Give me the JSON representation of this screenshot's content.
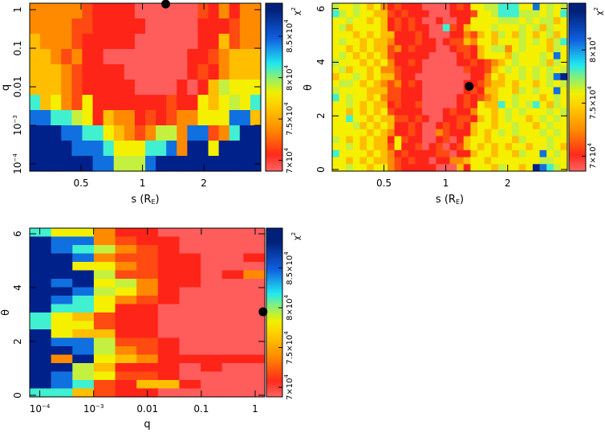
{
  "palette": [
    "#ff5c5c",
    "#ff2418",
    "#ff4a12",
    "#ff8a00",
    "#ffbe00",
    "#f4f000",
    "#c4f040",
    "#40f0d0",
    "#1070e0",
    "#00208a"
  ],
  "colorbar_title": {
    "base": "χ",
    "exp": "2"
  },
  "chart_data": [
    {
      "type": "heatmap",
      "name": "s-q",
      "xlabel": {
        "text": "s (R",
        "sub": "E",
        "close": ")"
      },
      "ylabel": "q",
      "xscale": "log",
      "xlim": [
        0.28,
        3.8
      ],
      "yscale": "log",
      "ylim": [
        6.5e-05,
        1.47
      ],
      "xticks": [
        {
          "v": 0.5,
          "label": "0.5"
        },
        {
          "v": 1,
          "label": "1"
        },
        {
          "v": 2,
          "label": "2"
        }
      ],
      "yticks": [
        {
          "v": 1,
          "label": "1"
        },
        {
          "v": 0.1,
          "label": "0.1"
        },
        {
          "v": 0.01,
          "label": "0.01"
        },
        {
          "v": 0.001,
          "label": "10",
          "exp": "−3"
        },
        {
          "v": 0.0001,
          "label": "10",
          "exp": "−4"
        }
      ],
      "colorbar": {
        "range": [
          68700,
          89000
        ],
        "ticks": [
          {
            "v": 70000,
            "label": "7×10",
            "exp": "4"
          },
          {
            "v": 75000,
            "label": "7.5×10",
            "exp": "4"
          },
          {
            "v": 80000,
            "label": "8×10",
            "exp": "4"
          },
          {
            "v": 85000,
            "label": "8.5×10",
            "exp": "4"
          }
        ]
      },
      "best_fit": {
        "x": 1.3,
        "y": 1.4
      },
      "levels_grid": [
        "3333321111000000213133",
        "3333221111100000111233",
        "4333211111000000114233",
        "4432311000000001123444",
        "4443211110000001213444",
        "4443211111000010146555",
        "7453251111111211545657",
        "8877651433121233555884",
        "9998877543236638823799",
        "9999888755577839959999",
        "9999998866689999999999"
      ]
    },
    {
      "type": "heatmap",
      "name": "s-theta",
      "xlabel": {
        "text": "s (R",
        "sub": "E",
        "close": ")"
      },
      "ylabel": "θ",
      "xscale": "log",
      "xlim": [
        0.28,
        3.9
      ],
      "yscale": "linear",
      "ylim": [
        -0.06,
        6.2
      ],
      "xticks": [
        {
          "v": 0.5,
          "label": "0.5"
        },
        {
          "v": 1,
          "label": "1"
        },
        {
          "v": 2,
          "label": "2"
        }
      ],
      "yticks": [
        {
          "v": 0,
          "label": "0"
        },
        {
          "v": 2,
          "label": "2"
        },
        {
          "v": 4,
          "label": "4"
        },
        {
          "v": 6,
          "label": "6"
        }
      ],
      "colorbar": {
        "range": [
          68600,
          84400
        ],
        "ticks": [
          {
            "v": 70000,
            "label": "7×10",
            "exp": "4"
          },
          {
            "v": 75000,
            "label": "7.5×10",
            "exp": "4"
          },
          {
            "v": 80000,
            "label": "8×10",
            "exp": "4"
          }
        ]
      },
      "best_fit": {
        "x": 1.3,
        "y": 3.1
      },
      "levels_grid": [
        "6556545312111000012155667775585656",
        "7656554421211100011125567776665657",
        "5565545412121001001155556665656645",
        "5645555412121100721455565556564655",
        "5554545441112100011324546546545645",
        "5655454431112110122435545556565467",
        "5545454423121110012214566356555465",
        "5654545421111100001214555465556585",
        "6555454531121000001121234565556465",
        "5645545332111000000211245656565656",
        "4556545442110000000011354556565689",
        "5665454323121000000112344545545656",
        "6555544422111000000121445546565585",
        "7565545322111000001212345565554565",
        "5565454412112000001215447565675465",
        "5545454521111000121135545656555656",
        "5575545442212100112214545655456565",
        "5556454541121001212145545565545655",
        "5555545431121003211145456565556565",
        "6545454415211001201455455546555655",
        "5565454425112012012454545455455654",
        "7555545431211112201145545546558565",
        "5545454432121101133455455555556655",
        "5565545532111110004155546554598765"
      ]
    },
    {
      "type": "heatmap",
      "name": "q-theta",
      "xlabel": {
        "text": "q",
        "sub": "",
        "close": ""
      },
      "ylabel": "θ",
      "xscale": "log",
      "xlim": [
        6.5e-05,
        1.51
      ],
      "yscale": "linear",
      "ylim": [
        -0.06,
        6.21
      ],
      "xticks": [
        {
          "v": 0.0001,
          "label": "10",
          "exp": "−4"
        },
        {
          "v": 0.001,
          "label": "10",
          "exp": "−3"
        },
        {
          "v": 0.01,
          "label": "0.01"
        },
        {
          "v": 0.1,
          "label": "0.1"
        },
        {
          "v": 1,
          "label": "1"
        }
      ],
      "yticks": [
        {
          "v": 0,
          "label": "0"
        },
        {
          "v": 2,
          "label": "2"
        },
        {
          "v": 4,
          "label": "4"
        },
        {
          "v": 6,
          "label": "6"
        }
      ],
      "colorbar": {
        "range": [
          68800,
          90000
        ],
        "ticks": [
          {
            "v": 70000,
            "label": "7×10",
            "exp": "4"
          },
          {
            "v": 75000,
            "label": "7.5×10",
            "exp": "4"
          },
          {
            "v": 80000,
            "label": "8×10",
            "exp": "4"
          },
          {
            "v": 85000,
            "label": "8.5×10",
            "exp": "4"
          }
        ]
      },
      "best_fit": {
        "x": 1.4,
        "y": 3.1
      },
      "levels_grid": [
        "75531100000",
        "98832110000",
        "98763210000",
        "99832211001",
        "99553211000",
        "99962211013",
        "98956311000",
        "99865310000",
        "98753210000",
        "97751100000",
        "75421100000",
        "75521100000",
        "95441100000",
        "98862210000",
        "99863210000",
        "93954311111",
        "99641110100",
        "98652210000",
        "98721441000",
        "77421100000"
      ]
    }
  ]
}
